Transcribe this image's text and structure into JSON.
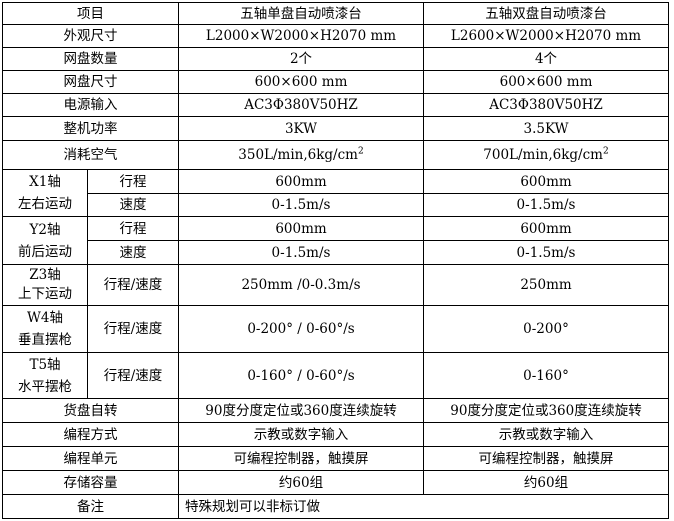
{
  "header": {
    "item": "项目",
    "model_a": "五轴单盘自动喷漆台",
    "model_b": "五轴双盘自动喷漆台"
  },
  "rows": [
    {
      "label": "外观尺寸",
      "a": "L2000×W2000×H2070 mm",
      "b": "L2600×W2000×H2070 mm"
    },
    {
      "label": "网盘数量",
      "a": "2个",
      "b": "4个"
    },
    {
      "label": "网盘尺寸",
      "a": "600×600 mm",
      "b": "600×600 mm"
    },
    {
      "label": "电源输入",
      "a": "AC3Φ380V50HZ",
      "b": "AC3Φ380V50HZ"
    },
    {
      "label": "整机功率",
      "a": "3KW",
      "b": "3.5KW"
    },
    {
      "label": "消耗空气",
      "a": "350L/min,6kg/cm",
      "b": "700L/min,6kg/cm",
      "sup": "2"
    }
  ],
  "axes": [
    {
      "axis": "X1轴",
      "motion": "左右运动",
      "sub": [
        {
          "label": "行程",
          "a": "600mm",
          "b": "600mm"
        },
        {
          "label": "速度",
          "a": "0-1.5m/s",
          "b": "0-1.5m/s"
        }
      ]
    },
    {
      "axis": "Y2轴",
      "motion": "前后运动",
      "sub": [
        {
          "label": "行程",
          "a": "600mm",
          "b": "600mm"
        },
        {
          "label": "速度",
          "a": "0-1.5m/s",
          "b": "0-1.5m/s"
        }
      ]
    },
    {
      "axis": "Z3轴",
      "motion": "上下运动",
      "sub": [
        {
          "label": "行程/速度",
          "a": "250mm /0-0.3m/s",
          "b": "250mm"
        }
      ]
    },
    {
      "axis": "W4轴",
      "motion": "垂直摆枪",
      "sub": [
        {
          "label": "行程/速度",
          "a": "0-200° / 0-60°/s",
          "b": "0-200°"
        }
      ]
    },
    {
      "axis": "T5轴",
      "motion": "水平摆枪",
      "sub": [
        {
          "label": "行程/速度",
          "a": "0-160° / 0-60°/s",
          "b": "0-160°"
        }
      ]
    }
  ],
  "rows2": [
    {
      "label": "货盘自转",
      "a": "90度分度定位或360度连续旋转",
      "b": "90度分度定位或360度连续旋转"
    },
    {
      "label": "编程方式",
      "a": "示教或数字输入",
      "b": "示教或数字输入"
    },
    {
      "label": "编程单元",
      "a": "可编程控制器，触摸屏",
      "b": "可编程控制器，触摸屏"
    },
    {
      "label": "存储容量",
      "a": "约60组",
      "b": "约60组"
    }
  ],
  "note": {
    "label": "备注",
    "value": "特殊规划可以非标订做"
  }
}
